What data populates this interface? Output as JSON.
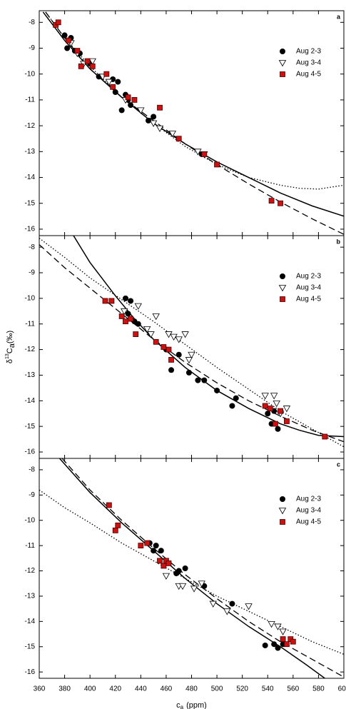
{
  "chart_data": [
    {
      "type": "scatter",
      "panel_label": "a",
      "xlim": [
        360,
        600
      ],
      "ylim": [
        -16.25,
        -7.55
      ],
      "yticks": [
        -8,
        -9,
        -10,
        -11,
        -12,
        -13,
        -14,
        -15,
        -16
      ],
      "legend": "upper right",
      "series": [
        {
          "name": "Aug 2-3",
          "marker": "circle",
          "color": "#000000",
          "x": [
            380,
            382,
            385,
            388,
            392,
            400,
            407,
            418,
            420,
            422,
            425,
            428,
            430,
            432,
            446,
            450,
            488
          ],
          "values": [
            -8.5,
            -9.0,
            -8.6,
            -9.1,
            -9.2,
            -9.6,
            -10.1,
            -10.2,
            -10.7,
            -10.3,
            -11.4,
            -10.8,
            -11.0,
            -11.2,
            -11.8,
            -11.65,
            -13.1
          ]
        },
        {
          "name": "Aug 3-4",
          "marker": "triangle-down",
          "color": "#ffffff",
          "x": [
            385,
            390,
            395,
            402,
            410,
            415,
            428,
            440,
            450,
            455,
            465,
            485,
            490
          ],
          "values": [
            -8.8,
            -9.2,
            -9.6,
            -9.5,
            -10.1,
            -10.3,
            -11.0,
            -11.4,
            -11.9,
            -12.1,
            -12.3,
            -13.0,
            -13.1
          ]
        },
        {
          "name": "Aug 4-5",
          "marker": "square",
          "color": "#cc1111",
          "x": [
            373,
            375,
            383,
            390,
            393,
            398,
            402,
            413,
            418,
            430,
            435,
            455,
            470,
            490,
            500,
            543,
            550
          ],
          "values": [
            -8.1,
            -8.0,
            -8.7,
            -9.1,
            -9.7,
            -9.5,
            -9.7,
            -10.0,
            -10.5,
            -10.9,
            -11.0,
            -11.3,
            -12.5,
            -13.1,
            -13.5,
            -14.9,
            -15.0
          ]
        }
      ],
      "lines": [
        {
          "style": "solid",
          "x": [
            363,
            380,
            400,
            425,
            450,
            475,
            500,
            525,
            550,
            575,
            600
          ],
          "values": [
            -7.6,
            -8.7,
            -9.8,
            -10.9,
            -11.9,
            -12.7,
            -13.4,
            -14.0,
            -14.6,
            -15.1,
            -15.5
          ]
        },
        {
          "style": "dashed",
          "x": [
            365,
            380,
            400,
            425,
            450,
            475,
            500,
            525,
            550,
            575,
            600
          ],
          "values": [
            -7.6,
            -8.6,
            -9.8,
            -10.9,
            -11.8,
            -12.7,
            -13.5,
            -14.25,
            -14.95,
            -15.6,
            -16.2
          ]
        },
        {
          "style": "dotted",
          "x": [
            365,
            380,
            400,
            425,
            450,
            475,
            500,
            525,
            550,
            565,
            580,
            600
          ],
          "values": [
            -7.6,
            -8.6,
            -9.7,
            -10.9,
            -11.9,
            -12.8,
            -13.5,
            -14.0,
            -14.3,
            -14.42,
            -14.45,
            -14.3
          ]
        }
      ]
    },
    {
      "type": "scatter",
      "panel_label": "b",
      "xlim": [
        360,
        600
      ],
      "ylim": [
        -16.25,
        -7.55
      ],
      "yticks": [
        -8,
        -9,
        -10,
        -11,
        -12,
        -13,
        -14,
        -15,
        -16
      ],
      "y_label": {
        "prefix": "δ",
        "sup": "13",
        "main": "C",
        "sub": "a",
        "unit": "(‰)"
      },
      "legend": "upper right",
      "series": [
        {
          "name": "Aug 2-3",
          "marker": "circle",
          "color": "#000000",
          "x": [
            428,
            432,
            430,
            435,
            438,
            460,
            464,
            470,
            478,
            485,
            490,
            500,
            512,
            515,
            540,
            543,
            548,
            545
          ],
          "values": [
            -10.0,
            -10.1,
            -10.6,
            -10.9,
            -11.0,
            -12.0,
            -12.8,
            -12.2,
            -12.9,
            -13.2,
            -13.2,
            -13.6,
            -14.2,
            -13.9,
            -14.5,
            -14.9,
            -15.1,
            -14.4
          ]
        },
        {
          "name": "Aug 3-4",
          "marker": "triangle-down",
          "color": "#ffffff",
          "x": [
            427,
            438,
            445,
            448,
            452,
            462,
            466,
            470,
            475,
            478,
            480,
            538,
            545,
            547,
            550,
            555
          ],
          "values": [
            -10.5,
            -10.3,
            -11.2,
            -11.4,
            -10.7,
            -11.4,
            -11.5,
            -11.6,
            -11.4,
            -12.4,
            -12.2,
            -13.8,
            -13.8,
            -14.1,
            -14.5,
            -14.3
          ]
        },
        {
          "name": "Aug 4-5",
          "marker": "square",
          "color": "#cc1111",
          "x": [
            412,
            417,
            425,
            428,
            432,
            436,
            452,
            458,
            462,
            464,
            538,
            542,
            546,
            550,
            555,
            585
          ],
          "values": [
            -10.1,
            -10.1,
            -10.7,
            -10.9,
            -10.8,
            -11.4,
            -11.7,
            -11.9,
            -12.0,
            -12.4,
            -14.2,
            -14.3,
            -14.9,
            -14.4,
            -14.8,
            -15.4
          ]
        }
      ],
      "lines": [
        {
          "style": "solid",
          "x": [
            387,
            400,
            420,
            435,
            450,
            475,
            500,
            525,
            550,
            565,
            580,
            600
          ],
          "values": [
            -7.55,
            -8.6,
            -9.9,
            -10.8,
            -11.6,
            -12.7,
            -13.6,
            -14.3,
            -14.9,
            -15.15,
            -15.35,
            -15.4
          ]
        },
        {
          "style": "dashed",
          "x": [
            360,
            380,
            400,
            425,
            450,
            475,
            500,
            525,
            550,
            575,
            600
          ],
          "values": [
            -7.9,
            -8.8,
            -9.6,
            -10.6,
            -11.6,
            -12.5,
            -13.3,
            -14.0,
            -14.6,
            -15.15,
            -15.6
          ]
        },
        {
          "style": "dotted",
          "x": [
            360,
            380,
            400,
            425,
            450,
            475,
            500,
            525,
            550,
            575,
            600
          ],
          "values": [
            -7.65,
            -8.4,
            -9.2,
            -10.05,
            -10.9,
            -11.8,
            -12.7,
            -13.55,
            -14.4,
            -15.1,
            -15.8
          ]
        }
      ]
    },
    {
      "type": "scatter",
      "panel_label": "c",
      "xlim": [
        360,
        600
      ],
      "ylim": [
        -16.25,
        -7.55
      ],
      "yticks": [
        -8,
        -9,
        -10,
        -11,
        -12,
        -13,
        -14,
        -15,
        -16
      ],
      "xticks": [
        360,
        380,
        400,
        420,
        440,
        460,
        480,
        500,
        520,
        540,
        560,
        580,
        600
      ],
      "x_label": {
        "main": "c",
        "sub": "a",
        "unit": "(ppm)"
      },
      "legend": "upper right",
      "series": [
        {
          "name": "Aug 2-3",
          "marker": "circle",
          "color": "#000000",
          "x": [
            447,
            450,
            452,
            456,
            470,
            475,
            468,
            490,
            512,
            538,
            545,
            548,
            552
          ],
          "values": [
            -10.9,
            -11.2,
            -11.0,
            -11.2,
            -12.0,
            -11.9,
            -12.1,
            -12.6,
            -13.3,
            -14.95,
            -14.9,
            -15.05,
            -14.9
          ]
        },
        {
          "name": "Aug 3-4",
          "marker": "triangle-down",
          "color": "#ffffff",
          "x": [
            460,
            470,
            473,
            482,
            488,
            497,
            508,
            525,
            543,
            548,
            552
          ],
          "values": [
            -12.2,
            -12.6,
            -12.6,
            -12.7,
            -12.5,
            -13.3,
            -13.6,
            -13.4,
            -14.1,
            -14.2,
            -14.4
          ]
        },
        {
          "name": "Aug 4-5",
          "marker": "square",
          "color": "#cc1111",
          "x": [
            415,
            420,
            422,
            440,
            445,
            455,
            458,
            460,
            462,
            552,
            555,
            558,
            560
          ],
          "values": [
            -9.4,
            -10.4,
            -10.2,
            -11.0,
            -10.9,
            -11.6,
            -11.8,
            -11.6,
            -11.7,
            -14.7,
            -14.9,
            -14.7,
            -14.8
          ]
        }
      ],
      "lines": [
        {
          "style": "solid",
          "x": [
            376,
            400,
            425,
            450,
            475,
            500,
            525,
            550,
            570,
            585
          ],
          "values": [
            -7.55,
            -8.9,
            -10.1,
            -11.2,
            -12.3,
            -13.3,
            -14.2,
            -15.0,
            -15.7,
            -16.25
          ]
        },
        {
          "style": "dashed",
          "x": [
            378,
            400,
            425,
            450,
            475,
            500,
            525,
            550,
            575,
            600
          ],
          "values": [
            -7.55,
            -8.8,
            -10.0,
            -11.1,
            -12.15,
            -13.1,
            -14.0,
            -14.8,
            -15.5,
            -16.2
          ]
        },
        {
          "style": "dotted",
          "x": [
            360,
            380,
            400,
            425,
            450,
            475,
            500,
            525,
            550,
            575,
            600
          ],
          "values": [
            -8.8,
            -9.5,
            -10.1,
            -10.9,
            -11.6,
            -12.3,
            -13.0,
            -13.6,
            -14.2,
            -14.8,
            -15.3
          ]
        }
      ]
    }
  ]
}
